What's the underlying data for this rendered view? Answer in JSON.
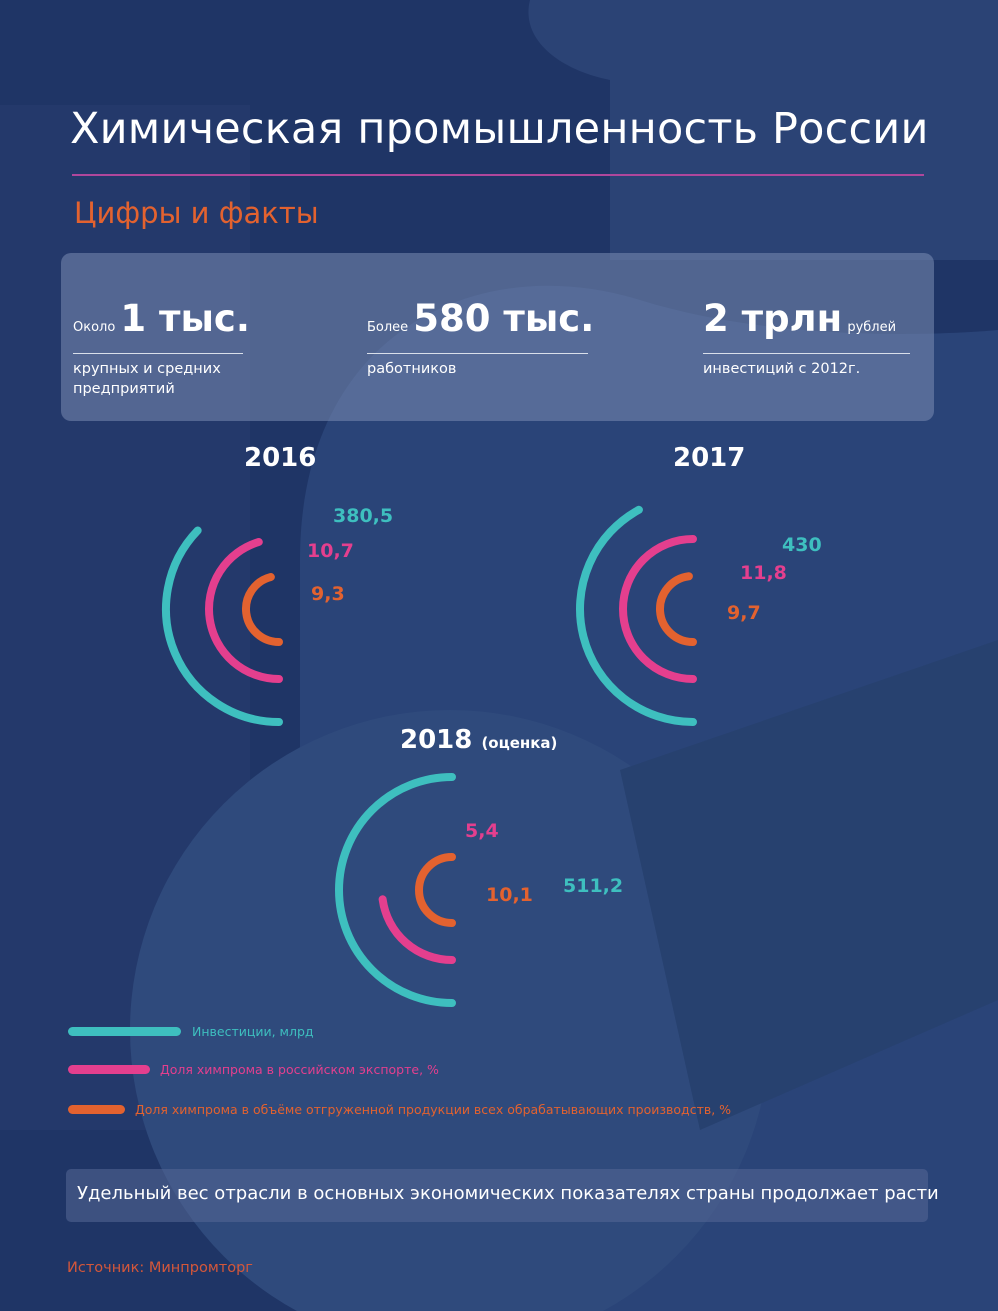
{
  "header": {
    "title": "Химическая промышленность России",
    "subtitle": "Цифры и факты"
  },
  "facts": [
    {
      "prefix": "Около",
      "value": "1 тыс.",
      "suffix": "",
      "description": "крупных и средних предприятий"
    },
    {
      "prefix": "Более",
      "value": "580 тыс.",
      "suffix": "",
      "description": "работников"
    },
    {
      "prefix": "",
      "value": "2 трлн",
      "suffix": "рублей",
      "description": "инвестиций с 2012г."
    }
  ],
  "chart_data": {
    "type": "radial-arcs",
    "series": [
      {
        "name": "Инвестиции, млрд",
        "color": "#3ebfbf"
      },
      {
        "name": "Доля химпрома в российском экспорте, %",
        "color": "#e43f8e"
      },
      {
        "name": "Доля химпрома в объёме отгруженной продукции всех обрабатывающих производств, %",
        "color": "#e3622f"
      }
    ],
    "years": [
      {
        "year": "2016",
        "note": "",
        "values": [
          380.5,
          10.7,
          9.3
        ],
        "labels": [
          "380,5",
          "10,7",
          "9,3"
        ]
      },
      {
        "year": "2017",
        "note": "",
        "values": [
          430,
          11.8,
          9.7
        ],
        "labels": [
          "430",
          "11,8",
          "9,7"
        ]
      },
      {
        "year": "2018",
        "note": "(оценка)",
        "values": [
          511.2,
          5.4,
          10.1
        ],
        "labels": [
          "511,2",
          "5,4",
          "10,1"
        ]
      }
    ]
  },
  "footer": {
    "conclusion": "Удельный вес отрасли в основных экономических показателях страны продолжает расти",
    "source": "Источник: Минпромторг"
  }
}
